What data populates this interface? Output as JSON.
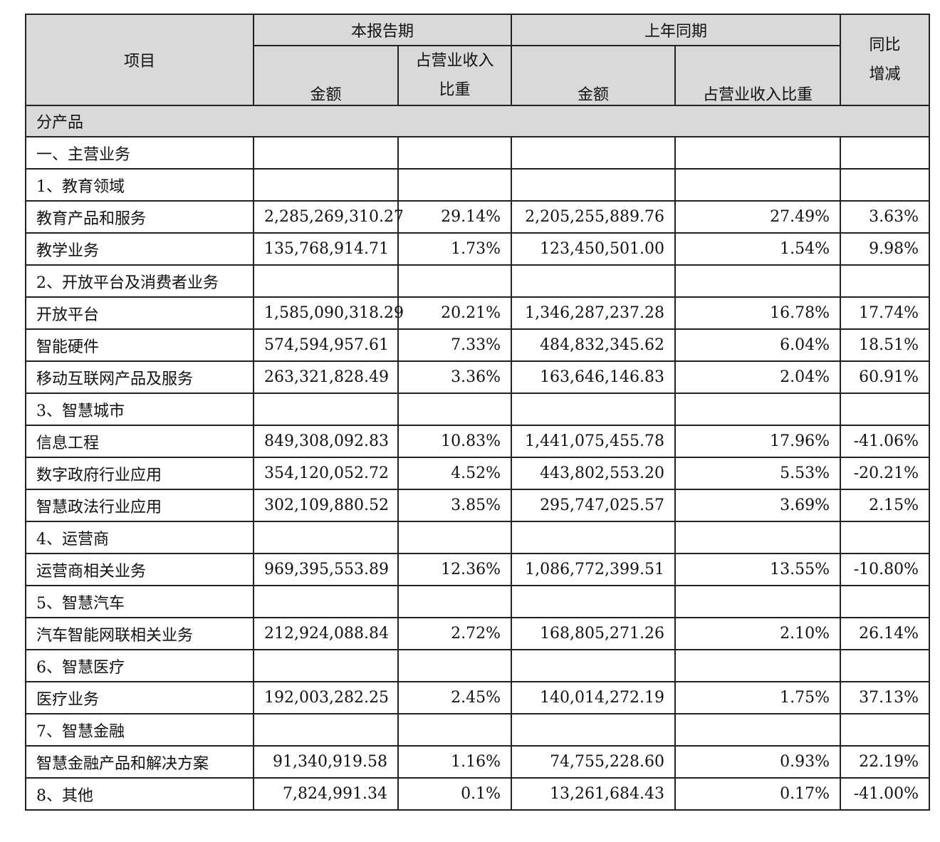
{
  "header": {
    "item": "项目",
    "current_period": "本报告期",
    "prior_period": "上年同期",
    "yoy_line1": "同比",
    "yoy_line2": "增减",
    "amount": "金额",
    "ratio_line1": "占营业收入",
    "ratio_line2": "比重",
    "prior_ratio": "占营业收入比重"
  },
  "section_title": "分产品",
  "rows": [
    {
      "label": "一、主营业务",
      "cur_amt": "",
      "cur_ratio": "",
      "prev_amt": "",
      "prev_ratio": "",
      "yoy": ""
    },
    {
      "label": "1、教育领域",
      "cur_amt": "",
      "cur_ratio": "",
      "prev_amt": "",
      "prev_ratio": "",
      "yoy": ""
    },
    {
      "label": "教育产品和服务",
      "cur_amt": "2,285,269,310.27",
      "cur_ratio": "29.14%",
      "prev_amt": "2,205,255,889.76",
      "prev_ratio": "27.49%",
      "yoy": "3.63%"
    },
    {
      "label": "教学业务",
      "cur_amt": "135,768,914.71",
      "cur_ratio": "1.73%",
      "prev_amt": "123,450,501.00",
      "prev_ratio": "1.54%",
      "yoy": "9.98%"
    },
    {
      "label": "2、开放平台及消费者业务",
      "cur_amt": "",
      "cur_ratio": "",
      "prev_amt": "",
      "prev_ratio": "",
      "yoy": ""
    },
    {
      "label": "开放平台",
      "cur_amt": "1,585,090,318.29",
      "cur_ratio": "20.21%",
      "prev_amt": "1,346,287,237.28",
      "prev_ratio": "16.78%",
      "yoy": "17.74%"
    },
    {
      "label": "智能硬件",
      "cur_amt": "574,594,957.61",
      "cur_ratio": "7.33%",
      "prev_amt": "484,832,345.62",
      "prev_ratio": "6.04%",
      "yoy": "18.51%"
    },
    {
      "label": "移动互联网产品及服务",
      "cur_amt": "263,321,828.49",
      "cur_ratio": "3.36%",
      "prev_amt": "163,646,146.83",
      "prev_ratio": "2.04%",
      "yoy": "60.91%"
    },
    {
      "label": "3、智慧城市",
      "cur_amt": "",
      "cur_ratio": "",
      "prev_amt": "",
      "prev_ratio": "",
      "yoy": ""
    },
    {
      "label": "信息工程",
      "cur_amt": "849,308,092.83",
      "cur_ratio": "10.83%",
      "prev_amt": "1,441,075,455.78",
      "prev_ratio": "17.96%",
      "yoy": "-41.06%"
    },
    {
      "label": "数字政府行业应用",
      "cur_amt": "354,120,052.72",
      "cur_ratio": "4.52%",
      "prev_amt": "443,802,553.20",
      "prev_ratio": "5.53%",
      "yoy": "-20.21%"
    },
    {
      "label": "智慧政法行业应用",
      "cur_amt": "302,109,880.52",
      "cur_ratio": "3.85%",
      "prev_amt": "295,747,025.57",
      "prev_ratio": "3.69%",
      "yoy": "2.15%"
    },
    {
      "label": "4、运营商",
      "cur_amt": "",
      "cur_ratio": "",
      "prev_amt": "",
      "prev_ratio": "",
      "yoy": ""
    },
    {
      "label": "运营商相关业务",
      "cur_amt": "969,395,553.89",
      "cur_ratio": "12.36%",
      "prev_amt": "1,086,772,399.51",
      "prev_ratio": "13.55%",
      "yoy": "-10.80%"
    },
    {
      "label": "5、智慧汽车",
      "cur_amt": "",
      "cur_ratio": "",
      "prev_amt": "",
      "prev_ratio": "",
      "yoy": ""
    },
    {
      "label": "汽车智能网联相关业务",
      "cur_amt": "212,924,088.84",
      "cur_ratio": "2.72%",
      "prev_amt": "168,805,271.26",
      "prev_ratio": "2.10%",
      "yoy": "26.14%"
    },
    {
      "label": "6、智慧医疗",
      "cur_amt": "",
      "cur_ratio": "",
      "prev_amt": "",
      "prev_ratio": "",
      "yoy": ""
    },
    {
      "label": "医疗业务",
      "cur_amt": "192,003,282.25",
      "cur_ratio": "2.45%",
      "prev_amt": "140,014,272.19",
      "prev_ratio": "1.75%",
      "yoy": "37.13%"
    },
    {
      "label": "7、智慧金融",
      "cur_amt": "",
      "cur_ratio": "",
      "prev_amt": "",
      "prev_ratio": "",
      "yoy": ""
    },
    {
      "label": "智慧金融产品和解决方案",
      "cur_amt": "91,340,919.58",
      "cur_ratio": "1.16%",
      "prev_amt": "74,755,228.60",
      "prev_ratio": "0.93%",
      "yoy": "22.19%"
    },
    {
      "label": "8、其他",
      "cur_amt": "7,824,991.34",
      "cur_ratio": "0.1%",
      "prev_amt": "13,261,684.43",
      "prev_ratio": "0.17%",
      "yoy": "-41.00%"
    }
  ]
}
